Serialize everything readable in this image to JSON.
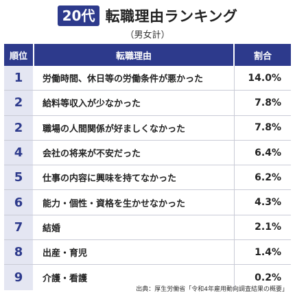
{
  "title": {
    "age_badge": "20代",
    "text": "転職理由ランキング",
    "subtitle": "（男女計）"
  },
  "table": {
    "headers": {
      "rank": "順位",
      "reason": "転職理由",
      "percent": "割合"
    },
    "rows": [
      {
        "rank": "1",
        "reason": "労働時間、休日等の労働条件が悪かった",
        "percent": "14.0%"
      },
      {
        "rank": "2",
        "reason": "給料等収入が少なかった",
        "percent": "7.8%"
      },
      {
        "rank": "2",
        "reason": "職場の人間関係が好ましくなかった",
        "percent": "7.8%"
      },
      {
        "rank": "4",
        "reason": "会社の将来が不安だった",
        "percent": "6.4%"
      },
      {
        "rank": "5",
        "reason": "仕事の内容に興味を持てなかった",
        "percent": "6.2%"
      },
      {
        "rank": "6",
        "reason": "能力・個性・資格を生かせなかった",
        "percent": "4.3%"
      },
      {
        "rank": "7",
        "reason": "結婚",
        "percent": "2.1%"
      },
      {
        "rank": "8",
        "reason": "出産・育児",
        "percent": "1.4%"
      },
      {
        "rank": "9",
        "reason": "介護・看護",
        "percent": "0.2%"
      }
    ]
  },
  "source": "出典：厚生労働省「令和4年雇用動向調査結果の概要」",
  "colors": {
    "header_bg": "#2d3a8c",
    "rank_bg": "#e4e6f2",
    "rank_text": "#2d3a8c"
  }
}
